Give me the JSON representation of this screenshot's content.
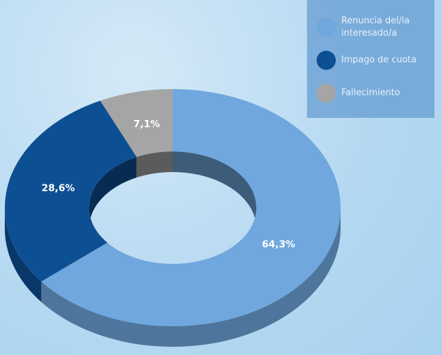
{
  "chart_data": {
    "type": "donut3d",
    "categories": [
      "Renuncia del/la interesado/a",
      "Impago de cuota",
      "Fallecimiento"
    ],
    "values": [
      64.3,
      28.6,
      7.1
    ],
    "value_labels": [
      "64,3%",
      "28,6%",
      "7,1%"
    ],
    "colors": [
      "#6fa7de",
      "#0d4f93",
      "#a5a5a5"
    ]
  }
}
